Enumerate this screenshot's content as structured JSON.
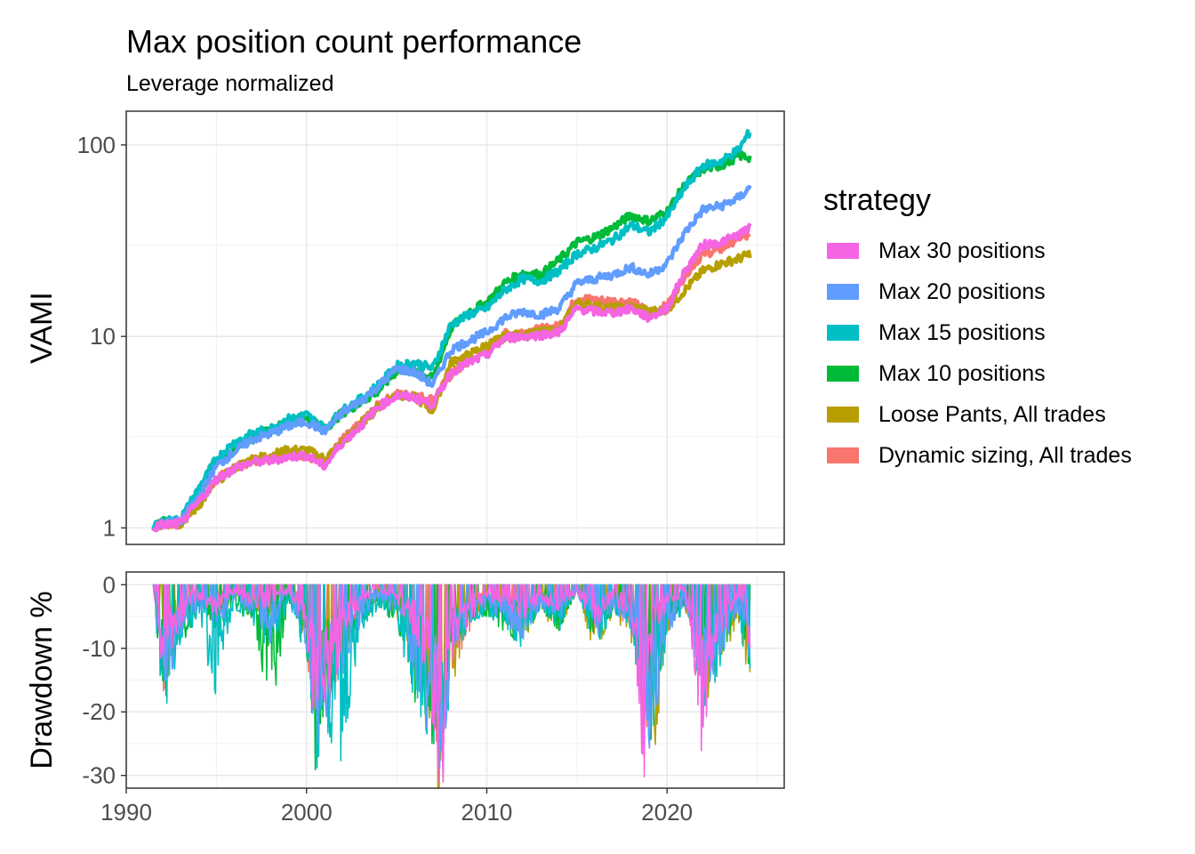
{
  "chart_data": [
    {
      "type": "line",
      "title": "Max position count performance",
      "subtitle": "Leverage normalized",
      "ylabel": "VAMI",
      "y_scale": "log10",
      "ylim": [
        0.82,
        150
      ],
      "xlim": [
        1990.0,
        2026.5
      ],
      "yticks": [
        1,
        10,
        100
      ],
      "yticks_minor": [
        3,
        30
      ],
      "grid": true,
      "legend": {
        "title": "strategy",
        "placement": "right",
        "entries": [
          {
            "name": "Max 30 positions",
            "color": "#F564E3"
          },
          {
            "name": "Max 20 positions",
            "color": "#619CFF"
          },
          {
            "name": "Max 15 positions",
            "color": "#00BFC4"
          },
          {
            "name": "Max 10 positions",
            "color": "#00BA38"
          },
          {
            "name": "Loose Pants, All trades",
            "color": "#B79F00"
          },
          {
            "name": "Dynamic sizing, All trades",
            "color": "#F8766D"
          }
        ]
      },
      "series": [
        {
          "name": "Dynamic sizing, All trades",
          "color": "#F8766D",
          "x": [
            1991.5,
            1992,
            1993,
            1994,
            1995,
            1996,
            1997,
            1998,
            1999,
            2000,
            2001,
            2002,
            2003,
            2004,
            2005,
            2006,
            2007,
            2008,
            2009,
            2010,
            2011,
            2012,
            2013,
            2014,
            2015,
            2016,
            2017,
            2018,
            2019,
            2020,
            2021,
            2022,
            2023,
            2024,
            2024.6
          ],
          "y": [
            1.0,
            1.05,
            1.05,
            1.35,
            1.8,
            2.05,
            2.25,
            2.3,
            2.4,
            2.4,
            2.2,
            2.9,
            3.5,
            4.4,
            5.0,
            4.9,
            4.7,
            6.3,
            7.4,
            8.3,
            10.3,
            10.6,
            10.9,
            11.3,
            16.0,
            15.5,
            15.3,
            15.2,
            13.4,
            14.4,
            21.0,
            27.0,
            28.5,
            33.0,
            33.0
          ]
        },
        {
          "name": "Loose Pants, All trades",
          "color": "#B79F00",
          "x": [
            1991.5,
            1992,
            1993,
            1994,
            1995,
            1996,
            1997,
            1998,
            1999,
            2000,
            2001,
            2002,
            2003,
            2004,
            2005,
            2006,
            2007,
            2008,
            2009,
            2010,
            2011,
            2012,
            2013,
            2014,
            2015,
            2016,
            2017,
            2018,
            2019,
            2020,
            2021,
            2022,
            2023,
            2024,
            2024.6
          ],
          "y": [
            1.0,
            1.05,
            1.05,
            1.3,
            1.75,
            2.05,
            2.3,
            2.4,
            2.55,
            2.55,
            2.3,
            2.8,
            3.5,
            4.3,
            5.0,
            4.8,
            4.1,
            7.3,
            8.0,
            9.0,
            10.0,
            10.2,
            10.5,
            10.8,
            15.0,
            14.5,
            14.0,
            14.3,
            13.5,
            13.8,
            17.5,
            22.0,
            24.0,
            25.5,
            27.0
          ]
        },
        {
          "name": "Max 10 positions",
          "color": "#00BA38",
          "x": [
            1991.5,
            1992,
            1993,
            1994,
            1995,
            1996,
            1997,
            1998,
            1999,
            2000,
            2001,
            2002,
            2003,
            2004,
            2005,
            2006,
            2007,
            2008,
            2009,
            2010,
            2011,
            2012,
            2013,
            2014,
            2015,
            2016,
            2017,
            2018,
            2019,
            2020,
            2021,
            2022,
            2023,
            2024,
            2024.6
          ],
          "y": [
            1.0,
            1.08,
            1.1,
            1.5,
            2.2,
            2.6,
            3.0,
            3.2,
            3.6,
            3.8,
            3.3,
            4.0,
            4.5,
            5.2,
            6.6,
            6.8,
            6.0,
            11.0,
            13.5,
            15.0,
            19.0,
            21.5,
            21.0,
            25.0,
            31.0,
            33.0,
            37.0,
            43.0,
            40.0,
            45.0,
            62.0,
            75.0,
            78.0,
            88.0,
            86.0
          ]
        },
        {
          "name": "Max 15 positions",
          "color": "#00BFC4",
          "x": [
            1991.5,
            1992,
            1993,
            1994,
            1995,
            1996,
            1997,
            1998,
            1999,
            2000,
            2001,
            2002,
            2003,
            2004,
            2005,
            2006,
            2007,
            2008,
            2009,
            2010,
            2011,
            2012,
            2013,
            2014,
            2015,
            2016,
            2017,
            2018,
            2019,
            2020,
            2021,
            2022,
            2023,
            2024,
            2024.6
          ],
          "y": [
            1.0,
            1.08,
            1.1,
            1.6,
            2.3,
            2.8,
            3.1,
            3.3,
            3.7,
            3.9,
            3.3,
            4.1,
            4.7,
            5.6,
            7.0,
            7.3,
            6.8,
            11.5,
            13.0,
            14.0,
            17.5,
            20.0,
            19.5,
            22.0,
            27.0,
            29.0,
            32.0,
            38.0,
            35.0,
            42.0,
            60.0,
            78.0,
            82.0,
            95.0,
            118.0
          ]
        },
        {
          "name": "Max 20 positions",
          "color": "#619CFF",
          "x": [
            1991.5,
            1992,
            1993,
            1994,
            1995,
            1996,
            1997,
            1998,
            1999,
            2000,
            2001,
            2002,
            2003,
            2004,
            2005,
            2006,
            2007,
            2008,
            2009,
            2010,
            2011,
            2012,
            2013,
            2014,
            2015,
            2016,
            2017,
            2018,
            2019,
            2020,
            2021,
            2022,
            2023,
            2024,
            2024.6
          ],
          "y": [
            1.0,
            1.06,
            1.08,
            1.45,
            2.1,
            2.5,
            2.9,
            3.1,
            3.4,
            3.6,
            3.2,
            4.0,
            4.6,
            5.5,
            6.8,
            6.5,
            5.6,
            8.5,
            9.5,
            10.5,
            12.5,
            13.5,
            13.0,
            14.0,
            19.0,
            20.0,
            21.0,
            23.0,
            21.0,
            24.0,
            35.0,
            46.0,
            48.0,
            53.0,
            60.0
          ]
        },
        {
          "name": "Max 30 positions",
          "color": "#F564E3",
          "x": [
            1991.5,
            1992,
            1993,
            1994,
            1995,
            1996,
            1997,
            1998,
            1999,
            2000,
            2001,
            2002,
            2003,
            2004,
            2005,
            2006,
            2007,
            2008,
            2009,
            2010,
            2011,
            2012,
            2013,
            2014,
            2015,
            2016,
            2017,
            2018,
            2019,
            2020,
            2021,
            2022,
            2023,
            2024,
            2024.6
          ],
          "y": [
            1.0,
            1.04,
            1.05,
            1.35,
            1.8,
            2.05,
            2.2,
            2.25,
            2.35,
            2.4,
            2.1,
            2.8,
            3.4,
            4.3,
            4.9,
            4.8,
            4.4,
            6.5,
            7.3,
            8.0,
            9.8,
            10.0,
            10.2,
            10.5,
            14.0,
            13.5,
            13.3,
            14.0,
            12.5,
            14.0,
            22.0,
            30.0,
            31.0,
            34.0,
            37.0
          ]
        }
      ]
    },
    {
      "type": "line",
      "ylabel": "Drawdown %",
      "xlabel": "",
      "ylim": [
        -32,
        2
      ],
      "xlim": [
        1990.0,
        2026.5
      ],
      "yticks": [
        0,
        -10,
        -20,
        -30
      ],
      "xticks": [
        1990,
        2000,
        2010,
        2020
      ],
      "grid": true,
      "series": [
        {
          "name": "Dynamic sizing, All trades",
          "color": "#F8766D",
          "x": [
            1991.5,
            1992,
            1993,
            1994,
            1995,
            1996,
            1997,
            1998,
            1999,
            2000,
            2000.5,
            2001,
            2002,
            2003,
            2004,
            2005,
            2006,
            2007,
            2007.5,
            2008,
            2009,
            2010,
            2011,
            2012,
            2013,
            2014,
            2015,
            2016,
            2017,
            2018,
            2018.8,
            2019,
            2020,
            2021,
            2022,
            2023,
            2024,
            2024.6
          ],
          "y": [
            0,
            -14,
            -6,
            -3,
            -5,
            -2,
            -3,
            -4,
            -1,
            -8,
            -22,
            -18,
            -10,
            -4,
            -2,
            -3,
            -8,
            -19,
            -27,
            -12,
            -6,
            -3,
            -4,
            -6,
            -3,
            -5,
            -1,
            -7,
            -3,
            -6,
            -24,
            -12,
            -4,
            -2,
            -14,
            -8,
            -3,
            -10
          ]
        },
        {
          "name": "Loose Pants, All trades",
          "color": "#B79F00",
          "x": [
            1991.5,
            1992,
            1993,
            1994,
            1995,
            1996,
            1997,
            1998,
            1999,
            2000,
            2000.5,
            2001,
            2002,
            2003,
            2004,
            2005,
            2006,
            2007,
            2007.3,
            2008,
            2009,
            2010,
            2011,
            2012,
            2013,
            2014,
            2015,
            2016,
            2017,
            2018,
            2019,
            2019.3,
            2020,
            2021,
            2022,
            2023,
            2024,
            2024.6
          ],
          "y": [
            0,
            -10,
            -5,
            -2,
            -4,
            -2,
            -3,
            -5,
            -1,
            -7,
            -20,
            -16,
            -12,
            -5,
            -2,
            -4,
            -10,
            -20,
            -31,
            -14,
            -5,
            -3,
            -5,
            -7,
            -4,
            -6,
            -1,
            -9,
            -4,
            -8,
            -18,
            -24,
            -6,
            -3,
            -16,
            -10,
            -5,
            -15
          ]
        },
        {
          "name": "Max 10 positions",
          "color": "#00BA38",
          "x": [
            1991.5,
            1992,
            1993,
            1994,
            1995,
            1996,
            1997,
            1998,
            1999,
            2000,
            2000.5,
            2001,
            2002,
            2003,
            2004,
            2005,
            2006,
            2007,
            2007.5,
            2008,
            2009,
            2010,
            2011,
            2012,
            2013,
            2014,
            2015,
            2016,
            2017,
            2018,
            2019,
            2020,
            2021,
            2022,
            2023,
            2024,
            2024.6
          ],
          "y": [
            0,
            -16,
            -8,
            -4,
            -7,
            -3,
            -5,
            -18,
            -2,
            -9,
            -26,
            -17,
            -10,
            -5,
            -3,
            -5,
            -15,
            -22,
            -25,
            -10,
            -5,
            -4,
            -6,
            -8,
            -3,
            -6,
            -1,
            -8,
            -4,
            -6,
            -22,
            -5,
            -3,
            -15,
            -9,
            -4,
            -12
          ]
        },
        {
          "name": "Max 15 positions",
          "color": "#00BFC4",
          "x": [
            1991.5,
            1992,
            1993,
            1994,
            1995,
            1996,
            1997,
            1998,
            1999,
            2000,
            2000.5,
            2001,
            2002,
            2003,
            2004,
            2005,
            2006,
            2007,
            2007.5,
            2008,
            2009,
            2010,
            2011,
            2012,
            2013,
            2014,
            2015,
            2016,
            2017,
            2018,
            2019,
            2020,
            2021,
            2022,
            2023,
            2024,
            2024.6
          ],
          "y": [
            0,
            -18,
            -8,
            -4,
            -16,
            -3,
            -5,
            -10,
            -2,
            -10,
            -24,
            -18,
            -23,
            -6,
            -3,
            -5,
            -16,
            -22,
            -27,
            -12,
            -6,
            -4,
            -6,
            -8,
            -3,
            -6,
            -1,
            -8,
            -4,
            -6,
            -23,
            -7,
            -3,
            -17,
            -10,
            -5,
            -13
          ]
        },
        {
          "name": "Max 20 positions",
          "color": "#619CFF",
          "x": [
            1991.5,
            1992,
            1993,
            1994,
            1995,
            1996,
            1997,
            1998,
            1999,
            2000,
            2000.5,
            2001,
            2002,
            2003,
            2004,
            2005,
            2006,
            2007,
            2007.5,
            2008,
            2009,
            2010,
            2011,
            2012,
            2013,
            2014,
            2015,
            2016,
            2017,
            2018,
            2019,
            2020,
            2021,
            2022,
            2023,
            2024,
            2024.6
          ],
          "y": [
            0,
            -16,
            -7,
            -3,
            -6,
            -2,
            -4,
            -8,
            -1,
            -9,
            -23,
            -19,
            -12,
            -5,
            -2,
            -4,
            -12,
            -21,
            -26,
            -11,
            -5,
            -3,
            -5,
            -7,
            -3,
            -5,
            -1,
            -7,
            -3,
            -6,
            -22,
            -8,
            -3,
            -16,
            -9,
            -4,
            -12
          ]
        },
        {
          "name": "Max 30 positions",
          "color": "#F564E3",
          "x": [
            1991.5,
            1992,
            1993,
            1994,
            1995,
            1996,
            1997,
            1998,
            1999,
            2000,
            2000.5,
            2001,
            2002,
            2003,
            2004,
            2005,
            2006,
            2007,
            2007.5,
            2008,
            2009,
            2010,
            2011,
            2012,
            2013,
            2014,
            2015,
            2016,
            2017,
            2018,
            2018.8,
            2019,
            2020,
            2021,
            2022,
            2023,
            2024,
            2024.6
          ],
          "y": [
            0,
            -12,
            -5,
            -2,
            -4,
            -1,
            -3,
            -3,
            -1,
            -6,
            -20,
            -16,
            -9,
            -3,
            -1,
            -2,
            -7,
            -18,
            -30,
            -11,
            -5,
            -2,
            -3,
            -5,
            -2,
            -4,
            -1,
            -6,
            -2,
            -5,
            -27,
            -10,
            -3,
            -1,
            -23,
            -7,
            -2,
            -9
          ]
        }
      ]
    }
  ]
}
